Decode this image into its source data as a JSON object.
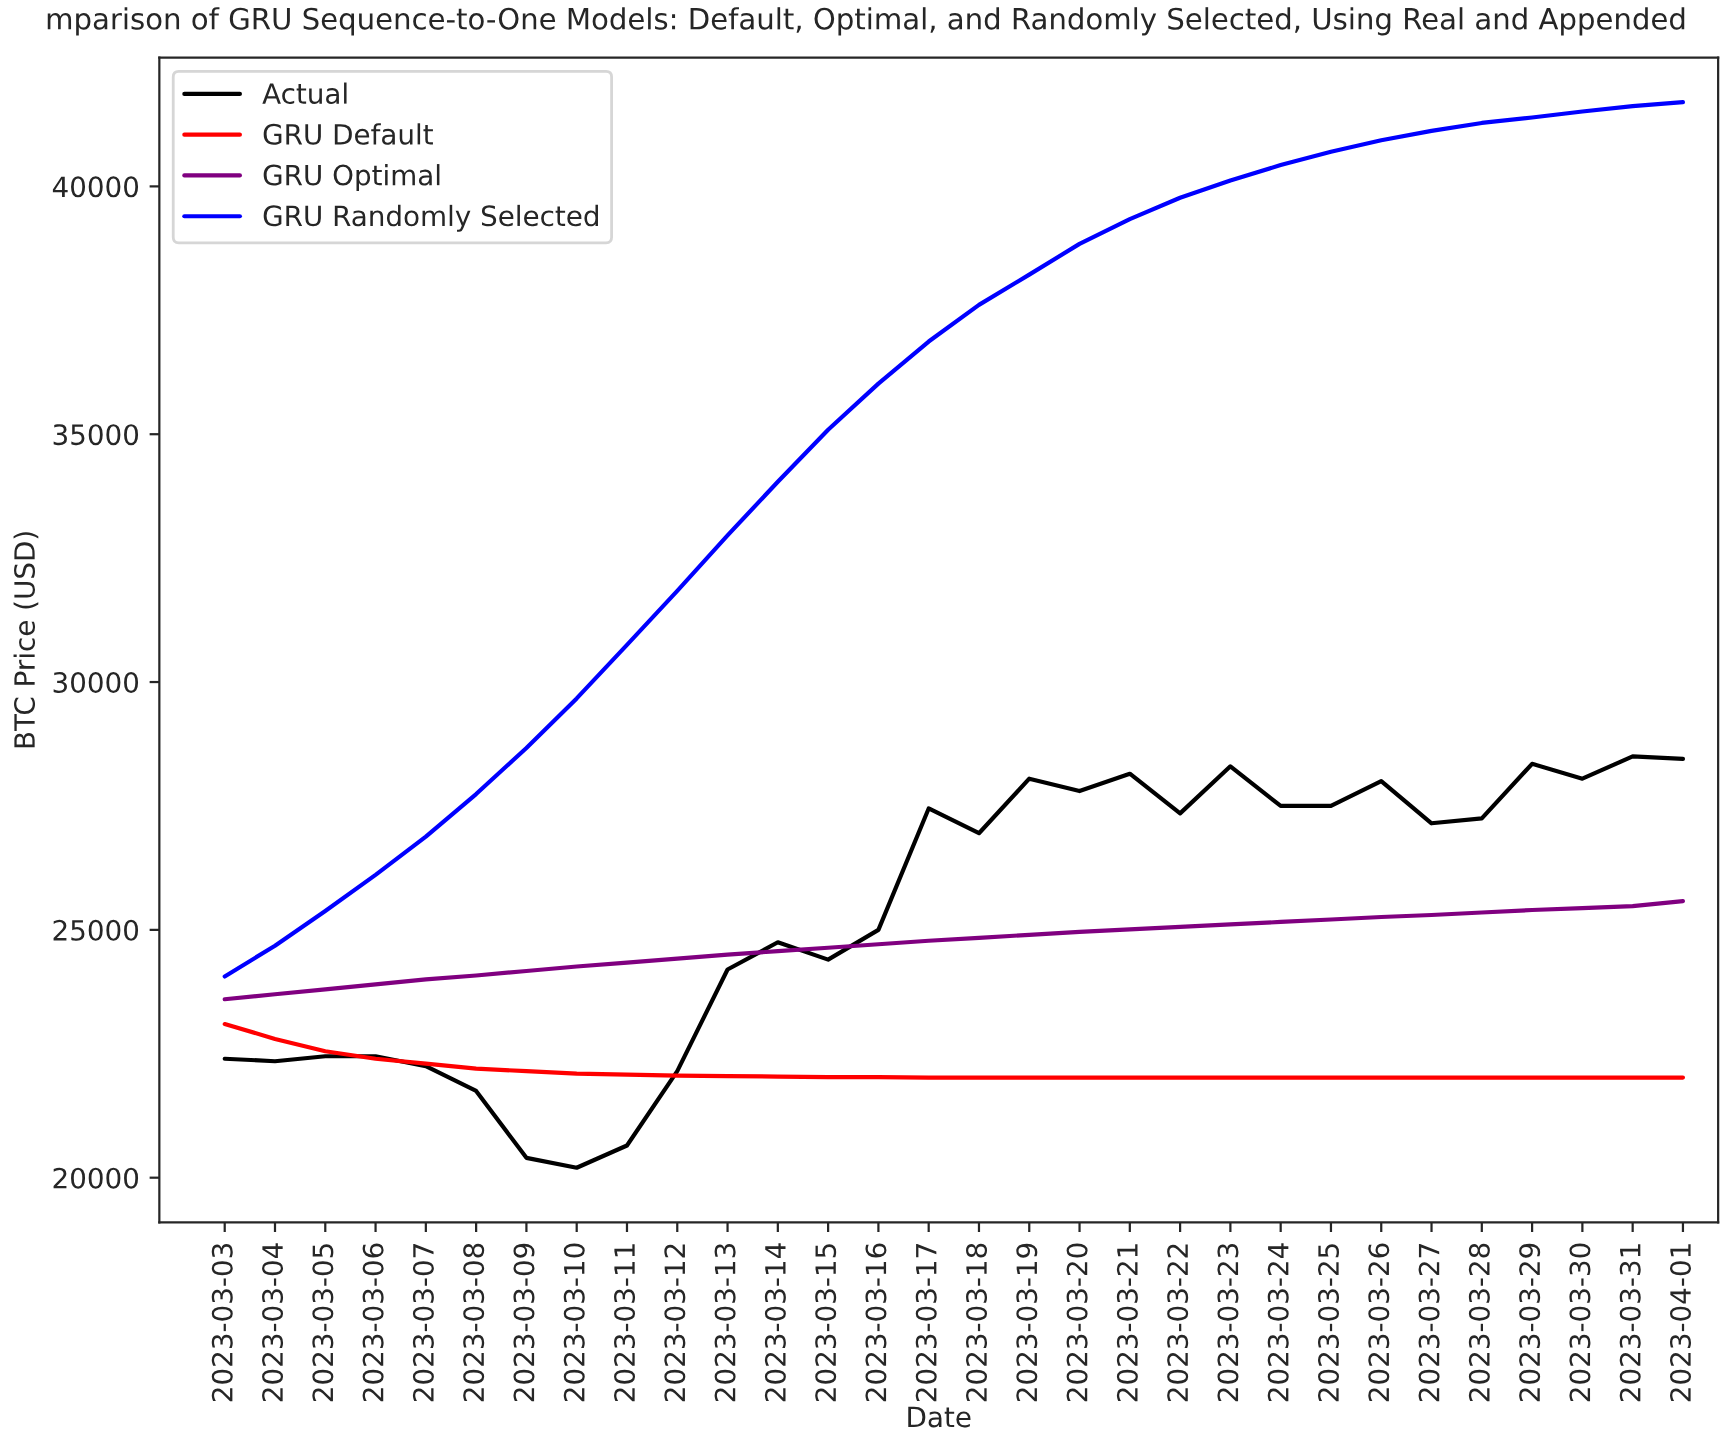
{
  "chart_data": {
    "type": "line",
    "title": "mparison of GRU Sequence-to-One Models: Default, Optimal, and Randomly Selected, Using Real and Appended",
    "xlabel": "Date",
    "ylabel": "BTC Price (USD)",
    "categories": [
      "2023-03-03",
      "2023-03-04",
      "2023-03-05",
      "2023-03-06",
      "2023-03-07",
      "2023-03-08",
      "2023-03-09",
      "2023-03-10",
      "2023-03-11",
      "2023-03-12",
      "2023-03-13",
      "2023-03-14",
      "2023-03-15",
      "2023-03-16",
      "2023-03-17",
      "2023-03-18",
      "2023-03-19",
      "2023-03-20",
      "2023-03-21",
      "2023-03-22",
      "2023-03-23",
      "2023-03-24",
      "2023-03-25",
      "2023-03-26",
      "2023-03-27",
      "2023-03-28",
      "2023-03-29",
      "2023-03-30",
      "2023-03-31",
      "2023-04-01"
    ],
    "series": [
      {
        "name": "Actual",
        "color": "#000000",
        "values": [
          22400,
          22350,
          22450,
          22450,
          22250,
          21750,
          20400,
          20200,
          20650,
          22150,
          24200,
          24750,
          24400,
          25000,
          27450,
          26950,
          28050,
          27800,
          28150,
          27350,
          28300,
          27500,
          27500,
          28000,
          27150,
          27250,
          28350,
          28050,
          28500,
          28450
        ]
      },
      {
        "name": "GRU Default",
        "color": "#ff0000",
        "values": [
          23100,
          22800,
          22550,
          22400,
          22300,
          22200,
          22150,
          22100,
          22080,
          22060,
          22050,
          22040,
          22030,
          22030,
          22020,
          22020,
          22020,
          22020,
          22020,
          22020,
          22020,
          22020,
          22020,
          22020,
          22020,
          22020,
          22020,
          22020,
          22020,
          22020
        ]
      },
      {
        "name": "GRU Optimal",
        "color": "#800080",
        "values": [
          23600,
          23700,
          23800,
          23900,
          24000,
          24080,
          24170,
          24260,
          24340,
          24420,
          24500,
          24570,
          24640,
          24710,
          24780,
          24840,
          24900,
          24960,
          25010,
          25060,
          25110,
          25160,
          25210,
          25260,
          25300,
          25350,
          25400,
          25440,
          25480,
          25580
        ]
      },
      {
        "name": "GRU Randomly Selected",
        "color": "#0000ff",
        "values": [
          24060,
          24680,
          25380,
          26110,
          26880,
          27740,
          28670,
          29670,
          30750,
          31840,
          32960,
          34040,
          35090,
          36020,
          36870,
          37610,
          38220,
          38840,
          39340,
          39770,
          40120,
          40430,
          40700,
          40930,
          41120,
          41280,
          41390,
          41510,
          41620,
          41700
        ]
      }
    ],
    "ylim": [
      19100,
      42600
    ],
    "yticks": [
      20000,
      25000,
      30000,
      35000,
      40000
    ],
    "grid": false,
    "legend": "top left",
    "marker": "none",
    "line_style": "solid"
  }
}
